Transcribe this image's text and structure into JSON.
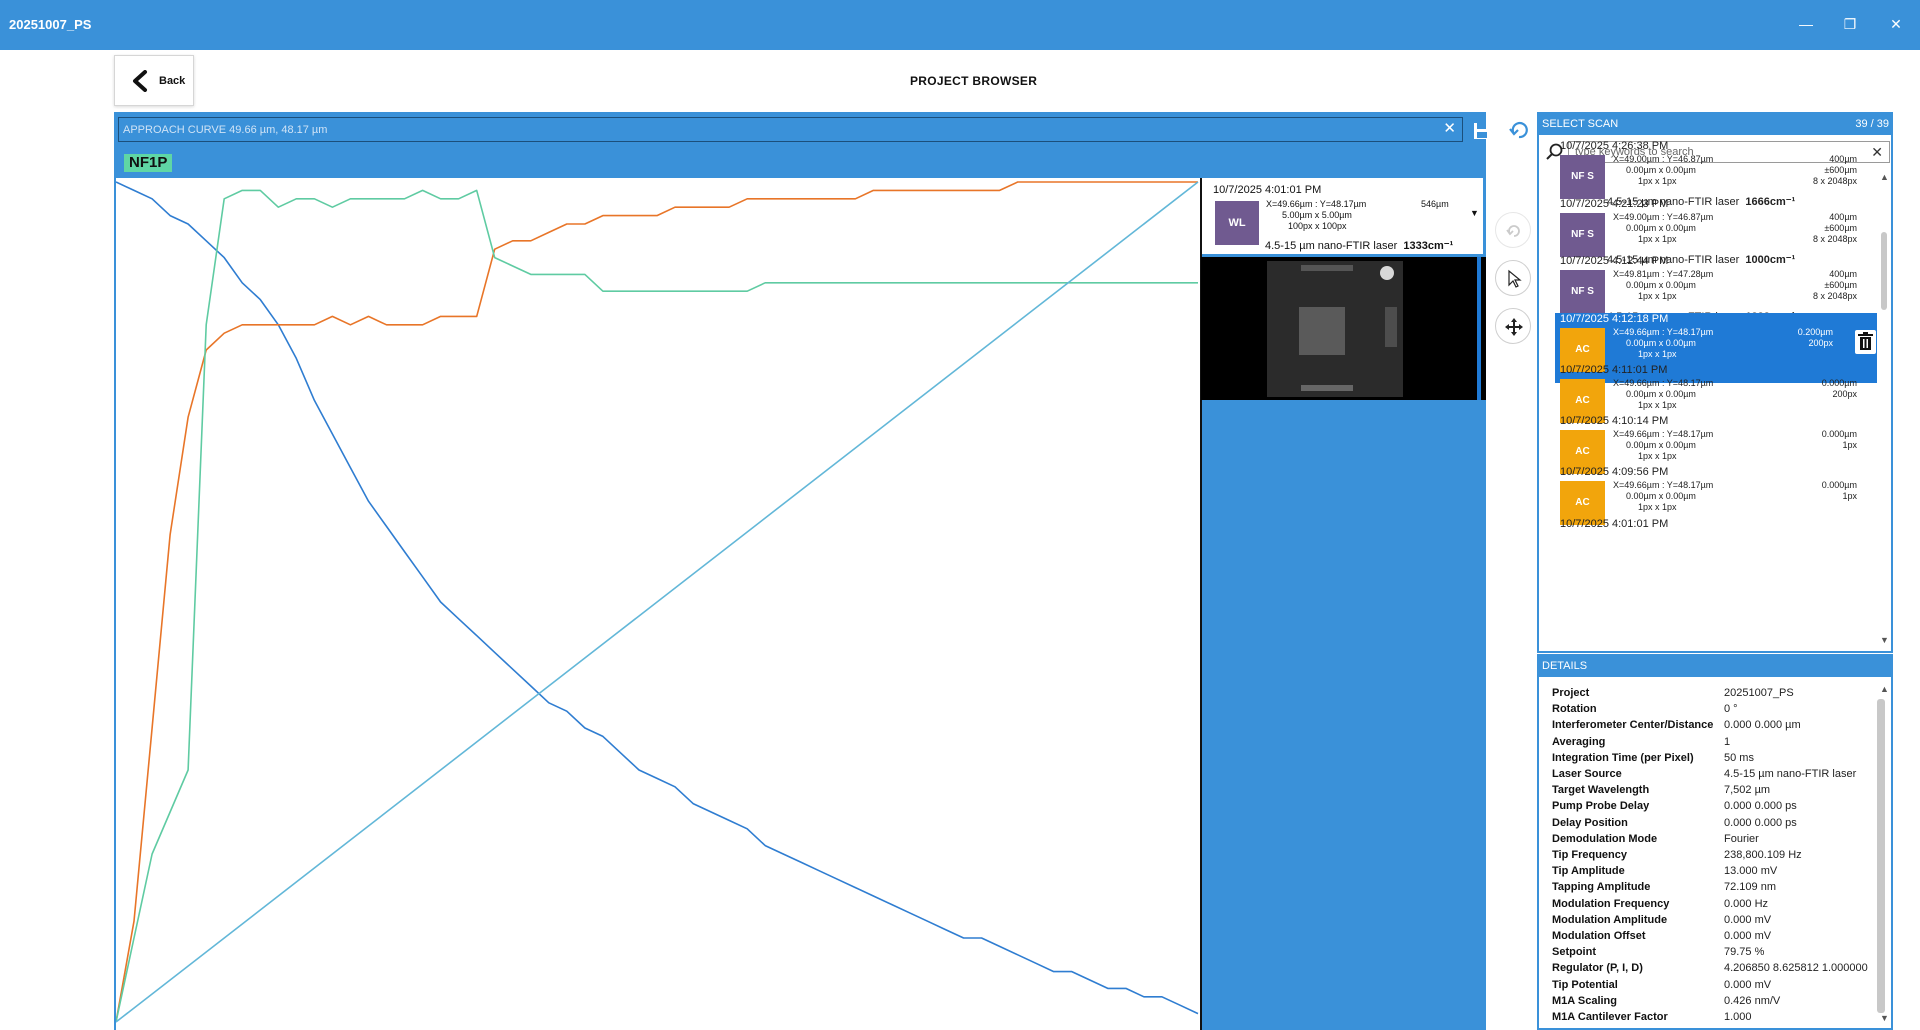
{
  "window": {
    "title": "20251007_PS",
    "minimize": "—",
    "maximize": "❐",
    "close": "✕"
  },
  "header": {
    "back_label": "Back",
    "page_title": "PROJECT BROWSER"
  },
  "main": {
    "title_field": "APPROACH CURVE 49.66 µm, 48.17 µm",
    "channel_badge": "NF1P"
  },
  "chart_data": {
    "type": "line",
    "title": "",
    "xlabel": "",
    "ylabel": "",
    "grid": false,
    "series": [
      {
        "color": "#2f7dd1",
        "values": [
          1.0,
          0.99,
          0.98,
          0.96,
          0.95,
          0.93,
          0.91,
          0.88,
          0.86,
          0.83,
          0.79,
          0.74,
          0.7,
          0.66,
          0.62,
          0.59,
          0.56,
          0.53,
          0.5,
          0.48,
          0.46,
          0.44,
          0.42,
          0.4,
          0.38,
          0.37,
          0.35,
          0.34,
          0.32,
          0.3,
          0.29,
          0.28,
          0.26,
          0.25,
          0.24,
          0.23,
          0.21,
          0.2,
          0.19,
          0.18,
          0.17,
          0.16,
          0.15,
          0.14,
          0.13,
          0.12,
          0.11,
          0.1,
          0.1,
          0.09,
          0.08,
          0.07,
          0.06,
          0.06,
          0.05,
          0.04,
          0.04,
          0.03,
          0.03,
          0.02,
          0.01
        ]
      },
      {
        "color": "#e87528",
        "values": [
          0.0,
          0.12,
          0.35,
          0.58,
          0.72,
          0.8,
          0.82,
          0.83,
          0.83,
          0.83,
          0.83,
          0.83,
          0.84,
          0.83,
          0.84,
          0.83,
          0.83,
          0.83,
          0.84,
          0.84,
          0.84,
          0.92,
          0.93,
          0.93,
          0.94,
          0.95,
          0.95,
          0.96,
          0.96,
          0.96,
          0.96,
          0.97,
          0.97,
          0.97,
          0.97,
          0.98,
          0.98,
          0.98,
          0.98,
          0.98,
          0.98,
          0.98,
          0.99,
          0.99,
          0.99,
          0.99,
          0.99,
          0.99,
          0.99,
          0.99,
          1.0,
          1.0,
          1.0,
          1.0,
          1.0,
          1.0,
          1.0,
          1.0,
          1.0,
          1.0,
          1.0
        ]
      },
      {
        "color": "#5fcba2",
        "values": [
          0.0,
          0.1,
          0.2,
          0.25,
          0.3,
          0.83,
          0.98,
          0.99,
          0.99,
          0.97,
          0.98,
          0.98,
          0.97,
          0.98,
          0.98,
          0.98,
          0.98,
          0.99,
          0.98,
          0.98,
          0.99,
          0.91,
          0.9,
          0.89,
          0.89,
          0.89,
          0.89,
          0.87,
          0.87,
          0.87,
          0.87,
          0.87,
          0.87,
          0.87,
          0.87,
          0.87,
          0.88,
          0.88,
          0.88,
          0.88,
          0.88,
          0.88,
          0.88,
          0.88,
          0.88,
          0.88,
          0.88,
          0.88,
          0.88,
          0.88,
          0.88,
          0.88,
          0.88,
          0.88,
          0.88,
          0.88,
          0.88,
          0.88,
          0.88,
          0.88,
          0.88
        ]
      },
      {
        "color": "#62b7d8",
        "values": [
          0.0,
          1.0
        ]
      }
    ]
  },
  "preview": {
    "date": "10/7/2025 4:01:01 PM",
    "thumb_label": "WL",
    "coords": "X=49.66µm  : Y=48.17µm",
    "size_line": "5.00µm x        5.00µm",
    "px_line": "100px x        100px",
    "right_value": "546µm",
    "laser": "4.5-15 µm nano-FTIR laser",
    "wavenumber": "1333cm⁻¹"
  },
  "scan_list": {
    "title": "SELECT SCAN",
    "count": "39 / 39",
    "search_placeholder": "type keywords to search",
    "items": [
      {
        "date": "10/7/2025 4:26:38 PM",
        "thumb": "NF S",
        "coords": "X=49.00µm  : Y=46.87µm",
        "l2": "0.00µm x        0.00µm",
        "l3": "1px x             1px",
        "r1": "400µm",
        "r2": "±600µm",
        "r3": "8 x 2048px",
        "laser": "4.5-15 µm nano-FTIR laser",
        "wn": "1666cm⁻¹"
      },
      {
        "date": "10/7/2025 4:21:23 PM",
        "thumb": "NF S",
        "coords": "X=49.00µm  : Y=46.87µm",
        "l2": "0.00µm x        0.00µm",
        "l3": "1px x             1px",
        "r1": "400µm",
        "r2": "±600µm",
        "r3": "8 x 2048px",
        "laser": "4.5-15 µm nano-FTIR laser",
        "wn": "1000cm⁻¹"
      },
      {
        "date": "10/7/2025 4:12:44 PM",
        "thumb": "NF S",
        "coords": "X=49.81µm  : Y=47.28µm",
        "l2": "0.00µm x        0.00µm",
        "l3": "1px x             1px",
        "r1": "400µm",
        "r2": "±600µm",
        "r3": "8 x 2048px",
        "laser": "4.5-15 µm nano-FTIR laser",
        "wn": "1333cm⁻¹"
      },
      {
        "date": "10/7/2025 4:12:18 PM",
        "thumb": "AC",
        "coords": "X=49.66µm  : Y=48.17µm",
        "l2": "0.00µm x        0.00µm",
        "l3": "1px x             1px",
        "r1": "0.200µm",
        "r2": "200px",
        "r3": "",
        "laser": "",
        "wn": ""
      },
      {
        "date": "10/7/2025 4:11:01 PM",
        "thumb": "AC",
        "coords": "X=49.66µm  : Y=48.17µm",
        "l2": "0.00µm x        0.00µm",
        "l3": "1px x             1px",
        "r1": "0.000µm",
        "r2": "200px",
        "r3": "",
        "laser": "",
        "wn": ""
      },
      {
        "date": "10/7/2025 4:10:14 PM",
        "thumb": "AC",
        "coords": "X=49.66µm  : Y=48.17µm",
        "l2": "0.00µm x        0.00µm",
        "l3": "1px x             1px",
        "r1": "0.000µm",
        "r2": "1px",
        "r3": "",
        "laser": "",
        "wn": ""
      },
      {
        "date": "10/7/2025 4:09:56 PM",
        "thumb": "AC",
        "coords": "X=49.66µm  : Y=48.17µm",
        "l2": "0.00µm x        0.00µm",
        "l3": "1px x             1px",
        "r1": "0.000µm",
        "r2": "1px",
        "r3": "",
        "laser": "",
        "wn": ""
      },
      {
        "date": "10/7/2025 4:01:01 PM",
        "thumb": "",
        "coords": "",
        "l2": "",
        "l3": "",
        "r1": "",
        "r2": "",
        "r3": "",
        "laser": "",
        "wn": ""
      }
    ]
  },
  "details": {
    "title": "DETAILS",
    "rows": [
      {
        "key": "Project",
        "value": "20251007_PS"
      },
      {
        "key": "Rotation",
        "value": "0 °"
      },
      {
        "key": "Interferometer Center/Distance",
        "value": "0.000  0.000  µm"
      },
      {
        "key": "Averaging",
        "value": "1"
      },
      {
        "key": "Integration Time (per Pixel)",
        "value": "50  ms"
      },
      {
        "key": "Laser Source",
        "value": "4.5-15 µm nano-FTIR laser"
      },
      {
        "key": "Target Wavelength",
        "value": "7,502  µm"
      },
      {
        "key": "Pump Probe Delay",
        "value": "0.000  0.000  ps"
      },
      {
        "key": "Delay Position",
        "value": "0.000  0.000  ps"
      },
      {
        "key": "Demodulation Mode",
        "value": "Fourier"
      },
      {
        "key": "Tip Frequency",
        "value": "238,800.109  Hz"
      },
      {
        "key": "Tip Amplitude",
        "value": "13.000  mV"
      },
      {
        "key": "Tapping Amplitude",
        "value": "72.109  nm"
      },
      {
        "key": "Modulation Frequency",
        "value": "0.000  Hz"
      },
      {
        "key": "Modulation Amplitude",
        "value": "0.000  mV"
      },
      {
        "key": "Modulation Offset",
        "value": "0.000  mV"
      },
      {
        "key": "Setpoint",
        "value": "79.75  %"
      },
      {
        "key": "Regulator (P, I, D)",
        "value": "4.206850  8.625812  1.000000"
      },
      {
        "key": "Tip Potential",
        "value": "0.000  mV"
      },
      {
        "key": "M1A Scaling",
        "value": "0.426  nm/V"
      },
      {
        "key": "M1A Cantilever Factor",
        "value": "1.000"
      }
    ]
  }
}
